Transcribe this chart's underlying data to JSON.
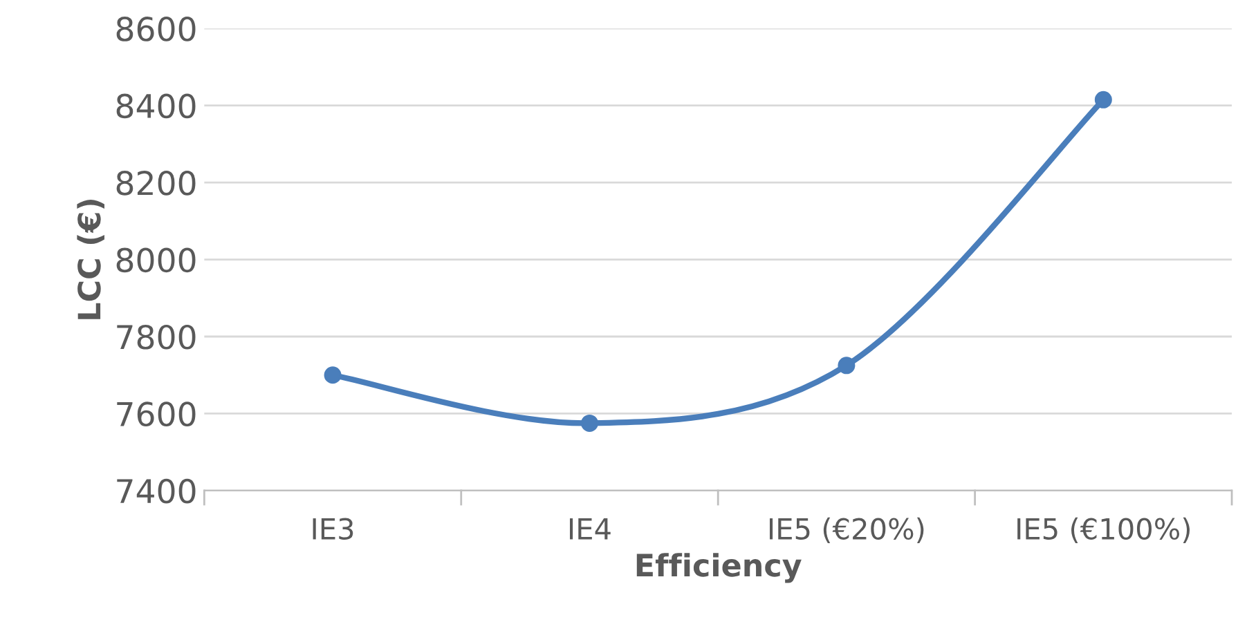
{
  "chart_data": {
    "type": "line",
    "xlabel": "Efficiency",
    "ylabel": "LCC (€)",
    "categories": [
      "IE3",
      "IE4",
      "IE5 (€20%)",
      "IE5 (€100%)"
    ],
    "series": [
      {
        "color": "#4a7ebb",
        "values": [
          7700,
          7575,
          7725,
          8415
        ]
      }
    ],
    "ylim": [
      7400,
      8600
    ],
    "yticks": [
      7400,
      7600,
      7800,
      8000,
      8200,
      8400,
      8600
    ],
    "grid": "y",
    "marker": "circle",
    "line_style": "solid",
    "legend": false
  }
}
